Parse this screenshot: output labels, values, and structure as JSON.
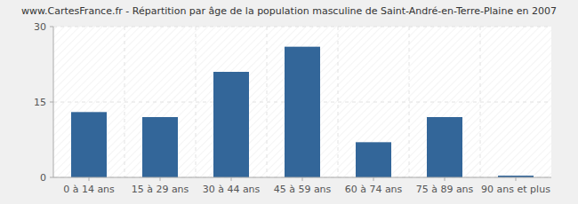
{
  "chart_data": {
    "type": "bar",
    "title": "www.CartesFrance.fr - Répartition par âge de la population masculine de Saint-André-en-Terre-Plaine en 2007",
    "categories": [
      "0 à 14 ans",
      "15 à 29 ans",
      "30 à 44 ans",
      "45 à 59 ans",
      "60 à 74 ans",
      "75 à 89 ans",
      "90 ans et plus"
    ],
    "values": [
      13,
      12,
      21,
      26,
      7,
      12,
      0
    ],
    "color": "#336699",
    "ylim": [
      0,
      30
    ],
    "yticks": [
      0,
      15,
      30
    ],
    "grid": true
  }
}
